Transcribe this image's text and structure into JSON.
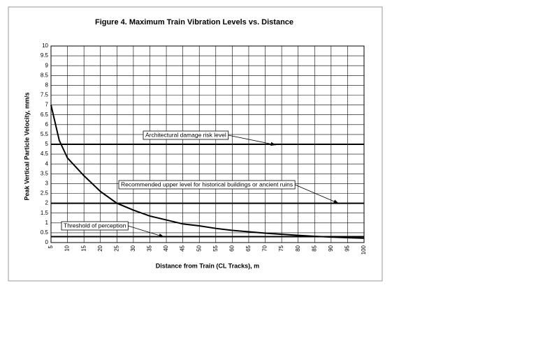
{
  "chart_data": {
    "type": "line",
    "title": "Figure 4.  Maximum Train Vibration Levels vs. Distance",
    "x_label": "Distance from Train (CL Tracks), m",
    "y_label": "Peak Vertical Particle Velocity, mm/s",
    "x": [
      5,
      7.5,
      10,
      15,
      20,
      25,
      30,
      35,
      40,
      45,
      50,
      55,
      60,
      65,
      70,
      75,
      80,
      85,
      90,
      95,
      100
    ],
    "series": [
      {
        "color": "#000000",
        "values": [
          7,
          5.2,
          4.3,
          3.4,
          2.6,
          2.0,
          1.65,
          1.35,
          1.15,
          0.95,
          0.85,
          0.72,
          0.62,
          0.55,
          0.48,
          0.42,
          0.37,
          0.32,
          0.28,
          0.25,
          0.22
        ]
      }
    ],
    "xlim": [
      5,
      100
    ],
    "xticks": [
      5,
      10,
      15,
      20,
      25,
      30,
      35,
      40,
      45,
      50,
      55,
      60,
      65,
      70,
      75,
      80,
      85,
      90,
      95,
      100
    ],
    "ylim": [
      0,
      10
    ],
    "yticks": [
      0,
      0.5,
      1,
      1.5,
      2,
      2.5,
      3,
      3.5,
      4,
      4.5,
      5,
      5.5,
      6,
      6.5,
      7,
      7.5,
      8,
      8.5,
      9,
      9.5,
      10
    ],
    "grid": true,
    "reference_lines": [
      {
        "value": 5,
        "label": "Architectural damage risk level"
      },
      {
        "value": 2,
        "label": "Recommended upper level for historical buildings or ancient ruins"
      },
      {
        "value": 0.3,
        "label": "Threshold of perception"
      }
    ]
  }
}
